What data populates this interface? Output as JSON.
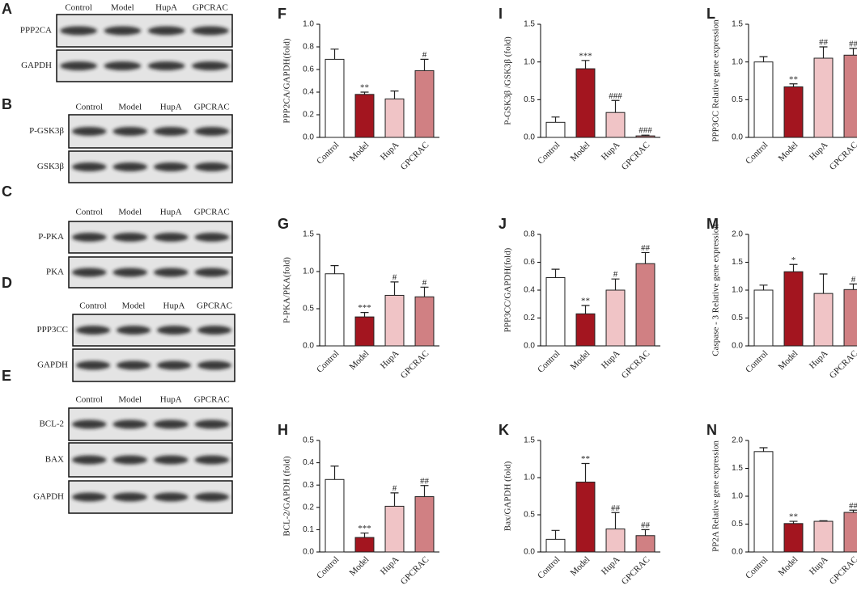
{
  "blots": [
    {
      "label": "A",
      "lanes": [
        "Control",
        "Model",
        "HupA",
        "GPCRAC"
      ],
      "rows": [
        "PPP2CA",
        "GAPDH"
      ]
    },
    {
      "label": "B",
      "lanes": [
        "Control",
        "Model",
        "HupA",
        "GPCRAC"
      ],
      "rows": [
        "P-GSK3β",
        "GSK3β"
      ]
    },
    {
      "label": "C",
      "lanes": [
        "Control",
        "Model",
        "HupA",
        "GPCRAC"
      ],
      "rows": [
        "P-PKA",
        "PKA"
      ]
    },
    {
      "label": "D",
      "lanes": [
        "Control",
        "Model",
        "HupA",
        "GPCRAC"
      ],
      "rows": [
        "PPP3CC",
        "GAPDH"
      ]
    },
    {
      "label": "E",
      "lanes": [
        "Control",
        "Model",
        "HupA",
        "GPCRAC"
      ],
      "rows": [
        "BCL-2",
        "BAX",
        "GAPDH"
      ]
    }
  ],
  "chart_data": [
    {
      "type": "bar",
      "label": "F",
      "ylabel": "PPP2CA/GAPDH(fold)",
      "categories": [
        "Control",
        "Model",
        "HupA",
        "GPCRAC"
      ],
      "values": [
        0.69,
        0.38,
        0.34,
        0.59
      ],
      "errors": [
        0.09,
        0.02,
        0.07,
        0.1
      ],
      "annotations": [
        null,
        "**",
        null,
        "#"
      ],
      "colors": [
        "#ffffff",
        "#a3151f",
        "#f0c4c6",
        "#d08083"
      ],
      "ylim": [
        0,
        1.0
      ],
      "yticks": [
        {
          "value": 0,
          "label": "0.0"
        },
        {
          "value": 0.2,
          "label": "0.2"
        },
        {
          "value": 0.4,
          "label": "0.4"
        },
        {
          "value": 0.6,
          "label": "0.6"
        },
        {
          "value": 0.8,
          "label": "0.8"
        },
        {
          "value": 1.0,
          "label": "1.0"
        }
      ]
    },
    {
      "type": "bar",
      "label": "I",
      "ylabel": "P-GSK3β /GSK3β (fold)",
      "categories": [
        "Control",
        "Model",
        "HupA",
        "GPCRAC"
      ],
      "values": [
        0.2,
        0.91,
        0.33,
        0.02
      ],
      "errors": [
        0.07,
        0.11,
        0.16,
        0.01
      ],
      "annotations": [
        null,
        "***",
        "###",
        "###"
      ],
      "colors": [
        "#ffffff",
        "#a3151f",
        "#f0c4c6",
        "#d08083"
      ],
      "ylim": [
        0,
        1.5
      ],
      "yticks": [
        {
          "value": 0,
          "label": "0.0"
        },
        {
          "value": 0.5,
          "label": "0.5"
        },
        {
          "value": 1.0,
          "label": "1.0"
        },
        {
          "value": 1.5,
          "label": "1.5"
        }
      ]
    },
    {
      "type": "bar",
      "label": "L",
      "ylabel": "PPP3CC Relative gene expression",
      "categories": [
        "Control",
        "Model",
        "HupA",
        "GPCRAC"
      ],
      "values": [
        1.0,
        0.67,
        1.05,
        1.09
      ],
      "errors": [
        0.07,
        0.04,
        0.15,
        0.09
      ],
      "annotations": [
        null,
        "**",
        "##",
        "##"
      ],
      "colors": [
        "#ffffff",
        "#a3151f",
        "#f0c4c6",
        "#d08083"
      ],
      "ylim": [
        0,
        1.5
      ],
      "yticks": [
        {
          "value": 0,
          "label": "0.0"
        },
        {
          "value": 0.5,
          "label": "0.5"
        },
        {
          "value": 1.0,
          "label": "1.0"
        },
        {
          "value": 1.5,
          "label": "1.5"
        }
      ]
    },
    {
      "type": "bar",
      "label": "G",
      "ylabel": "P-PKA/PKA(fold)",
      "categories": [
        "Control",
        "Model",
        "HupA",
        "GPCRAC"
      ],
      "values": [
        0.97,
        0.39,
        0.68,
        0.66
      ],
      "errors": [
        0.11,
        0.06,
        0.18,
        0.13
      ],
      "annotations": [
        null,
        "***",
        "#",
        "#"
      ],
      "colors": [
        "#ffffff",
        "#a3151f",
        "#f0c4c6",
        "#d08083"
      ],
      "ylim": [
        0,
        1.5
      ],
      "yticks": [
        {
          "value": 0,
          "label": "0.0"
        },
        {
          "value": 0.5,
          "label": "0.5"
        },
        {
          "value": 1.0,
          "label": "1.0"
        },
        {
          "value": 1.5,
          "label": "1.5"
        }
      ]
    },
    {
      "type": "bar",
      "label": "J",
      "ylabel": "PPP3CC/GAPDH(fold)",
      "categories": [
        "Control",
        "Model",
        "HupA",
        "GPCRAC"
      ],
      "values": [
        0.49,
        0.23,
        0.4,
        0.59
      ],
      "errors": [
        0.06,
        0.06,
        0.08,
        0.08
      ],
      "annotations": [
        null,
        "**",
        "#",
        "##"
      ],
      "colors": [
        "#ffffff",
        "#a3151f",
        "#f0c4c6",
        "#d08083"
      ],
      "ylim": [
        0,
        0.8
      ],
      "yticks": [
        {
          "value": 0,
          "label": "0.0"
        },
        {
          "value": 0.2,
          "label": "0.2"
        },
        {
          "value": 0.4,
          "label": "0.4"
        },
        {
          "value": 0.6,
          "label": "0.6"
        },
        {
          "value": 0.8,
          "label": "0.8"
        }
      ]
    },
    {
      "type": "bar",
      "label": "M",
      "ylabel": "Caspase - 3 Relative gene expression",
      "categories": [
        "Control",
        "Model",
        "HupA",
        "GPCRAC"
      ],
      "values": [
        1.0,
        1.33,
        0.94,
        1.01
      ],
      "errors": [
        0.09,
        0.13,
        0.35,
        0.1
      ],
      "annotations": [
        null,
        "*",
        null,
        "#"
      ],
      "colors": [
        "#ffffff",
        "#a3151f",
        "#f0c4c6",
        "#d08083"
      ],
      "ylim": [
        0,
        2.0
      ],
      "yticks": [
        {
          "value": 0,
          "label": "0.0"
        },
        {
          "value": 0.5,
          "label": "0.5"
        },
        {
          "value": 1.0,
          "label": "1.0"
        },
        {
          "value": 1.5,
          "label": "1.5"
        },
        {
          "value": 2.0,
          "label": "2.0"
        }
      ]
    },
    {
      "type": "bar",
      "label": "H",
      "ylabel": "BCL-2/GAPDH (fold)",
      "categories": [
        "Control",
        "Model",
        "HupA",
        "GPCRAC"
      ],
      "values": [
        0.325,
        0.065,
        0.205,
        0.248
      ],
      "errors": [
        0.06,
        0.02,
        0.06,
        0.05
      ],
      "annotations": [
        null,
        "***",
        "#",
        "##"
      ],
      "colors": [
        "#ffffff",
        "#a3151f",
        "#f0c4c6",
        "#d08083"
      ],
      "ylim": [
        0,
        0.5
      ],
      "yticks": [
        {
          "value": 0,
          "label": "0.0"
        },
        {
          "value": 0.1,
          "label": "0.1"
        },
        {
          "value": 0.2,
          "label": "0.2"
        },
        {
          "value": 0.3,
          "label": "0.3"
        },
        {
          "value": 0.4,
          "label": "0.4"
        },
        {
          "value": 0.5,
          "label": "0.5"
        }
      ]
    },
    {
      "type": "bar",
      "label": "K",
      "ylabel": "Bax/GAPDH (fold)",
      "categories": [
        "Control",
        "Model",
        "HupA",
        "GPCRAC"
      ],
      "values": [
        0.17,
        0.94,
        0.31,
        0.22
      ],
      "errors": [
        0.12,
        0.25,
        0.22,
        0.08
      ],
      "annotations": [
        null,
        "**",
        "##",
        "##"
      ],
      "colors": [
        "#ffffff",
        "#a3151f",
        "#f0c4c6",
        "#d08083"
      ],
      "ylim": [
        0,
        1.5
      ],
      "yticks": [
        {
          "value": 0,
          "label": "0.0"
        },
        {
          "value": 0.5,
          "label": "0.5"
        },
        {
          "value": 1.0,
          "label": "1.0"
        },
        {
          "value": 1.5,
          "label": "1.5"
        }
      ]
    },
    {
      "type": "bar",
      "label": "N",
      "ylabel": "PP2A Relative gene expression",
      "categories": [
        "Control",
        "Model",
        "HupA",
        "GPCRAC"
      ],
      "values": [
        1.8,
        0.51,
        0.55,
        0.71
      ],
      "errors": [
        0.07,
        0.04,
        0.01,
        0.04
      ],
      "annotations": [
        null,
        "**",
        null,
        "##"
      ],
      "colors": [
        "#ffffff",
        "#a3151f",
        "#f0c4c6",
        "#d08083"
      ],
      "ylim": [
        0,
        2.0
      ],
      "yticks": [
        {
          "value": 0,
          "label": "0.0"
        },
        {
          "value": 0.5,
          "label": "0.5"
        },
        {
          "value": 1.0,
          "label": "1.0"
        },
        {
          "value": 1.5,
          "label": "1.5"
        },
        {
          "value": 2.0,
          "label": "2.0"
        }
      ]
    }
  ]
}
